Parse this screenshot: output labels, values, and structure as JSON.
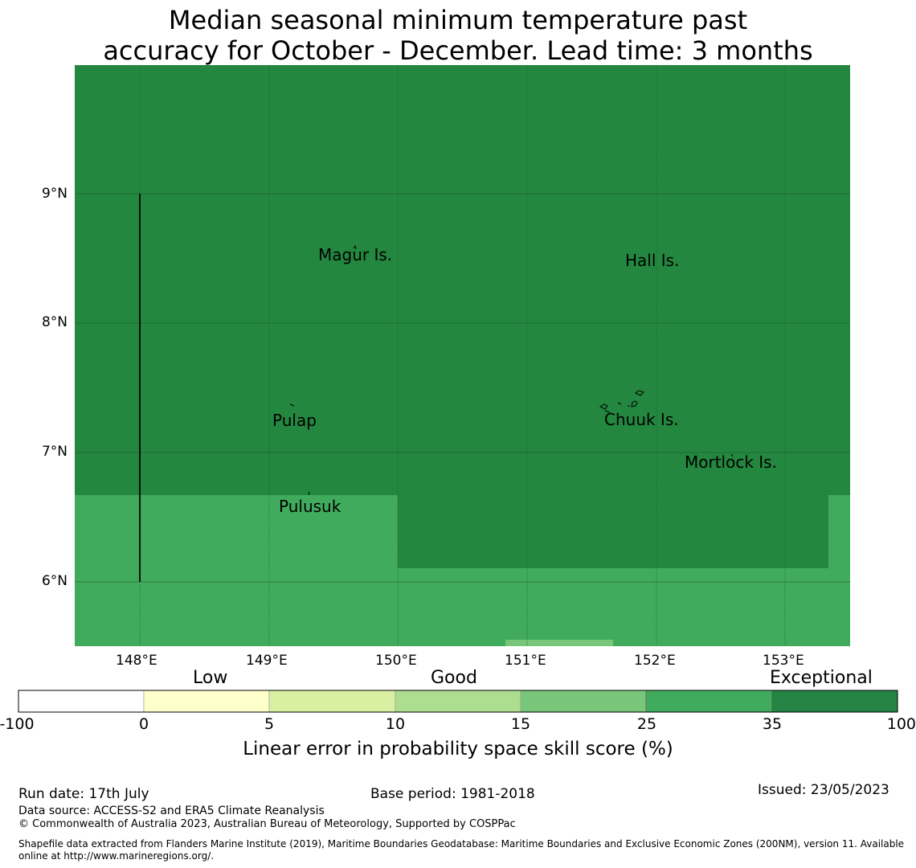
{
  "title": {
    "line1": "Median seasonal minimum temperature past",
    "line2": "accuracy for October - December. Lead time: 3 months"
  },
  "map": {
    "lon_ticks": [
      "148°E",
      "149°E",
      "150°E",
      "151°E",
      "152°E",
      "153°E"
    ],
    "lat_ticks": [
      "9°N",
      "8°N",
      "7°N",
      "6°N"
    ],
    "place_labels": {
      "magur": "Magur Is.",
      "hall": "Hall Is.",
      "pulap": "Pulap",
      "chuuk": "Chuuk Is.",
      "mortlock": "Mortlock Is.",
      "pulusuk": "Pulusuk"
    },
    "colors": {
      "exceptional": "#24873f",
      "good_high": "#41ab5d",
      "good_mid": "#78c679"
    }
  },
  "colorbar": {
    "categories": {
      "low": "Low",
      "good": "Good",
      "exceptional": "Exceptional"
    },
    "ticks": [
      "-100",
      "0",
      "5",
      "10",
      "15",
      "25",
      "35",
      "100"
    ],
    "colors": [
      "#ffffff",
      "#ffffcc",
      "#d9f0a3",
      "#addd8e",
      "#78c679",
      "#41ab5d",
      "#238443"
    ],
    "label": "Linear error in probability space skill score (%)"
  },
  "footer": {
    "run_date": "Run date: 17th July",
    "base_period": "Base period: 1981-2018",
    "issued": "Issued: 23/05/2023",
    "data_source": "Data source: ACCESS-S2 and ERA5 Climate Reanalysis",
    "copyright": "© Commonwealth of Australia 2023, Australian Bureau of Meteorology, Supported by COSPPac",
    "shapefile_line1": "Shapefile data extracted from Flanders Marine Institute (2019), Maritime Boundaries Geodatabase: Maritime Boundaries and Exclusive Economic Zones (200NM), version 11. Available",
    "shapefile_line2": "online at http://www.marineregions.org/."
  }
}
